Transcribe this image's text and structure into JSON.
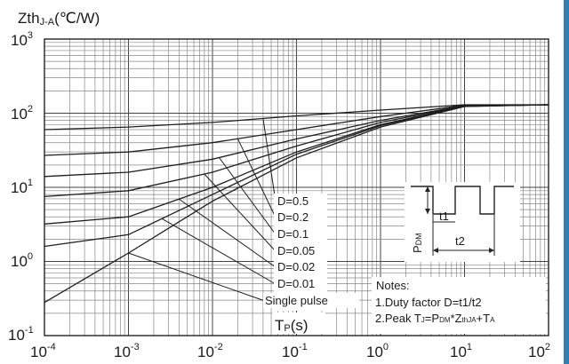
{
  "chart_data": {
    "type": "line",
    "ylabel_main": "Zth",
    "ylabel_sub": "J-A",
    "ylabel_unit": "(℃/W)",
    "xlabel_main": "T",
    "xlabel_sub": "P",
    "xlabel_unit": "(s)",
    "x_scale": "log",
    "y_scale": "log",
    "xlim": [
      0.0001,
      100
    ],
    "ylim": [
      0.1,
      1000
    ],
    "grid": true,
    "x_ticks": [
      {
        "base": "10",
        "exp": "-4"
      },
      {
        "base": "10",
        "exp": "-3"
      },
      {
        "base": "10",
        "exp": "-2"
      },
      {
        "base": "10",
        "exp": "-1"
      },
      {
        "base": "10",
        "exp": "0"
      },
      {
        "base": "10",
        "exp": "1"
      },
      {
        "base": "10",
        "exp": "2"
      }
    ],
    "y_ticks": [
      {
        "base": "10",
        "exp": "-1"
      },
      {
        "base": "10",
        "exp": "0"
      },
      {
        "base": "10",
        "exp": "1"
      },
      {
        "base": "10",
        "exp": "2"
      },
      {
        "base": "10",
        "exp": "3"
      }
    ],
    "series": [
      {
        "name": "D=0.5",
        "points": [
          [
            0.0001,
            60
          ],
          [
            0.001,
            65
          ],
          [
            0.01,
            75
          ],
          [
            0.1,
            92
          ],
          [
            1,
            110
          ],
          [
            10,
            130
          ],
          [
            100,
            130
          ]
        ]
      },
      {
        "name": "D=0.2",
        "points": [
          [
            0.0001,
            27
          ],
          [
            0.001,
            30
          ],
          [
            0.01,
            40
          ],
          [
            0.1,
            60
          ],
          [
            1,
            90
          ],
          [
            10,
            128
          ],
          [
            100,
            130
          ]
        ]
      },
      {
        "name": "D=0.1",
        "points": [
          [
            0.0001,
            14
          ],
          [
            0.001,
            16
          ],
          [
            0.01,
            24
          ],
          [
            0.1,
            45
          ],
          [
            1,
            80
          ],
          [
            10,
            126
          ],
          [
            100,
            130
          ]
        ]
      },
      {
        "name": "D=0.05",
        "points": [
          [
            0.0001,
            7.5
          ],
          [
            0.001,
            9
          ],
          [
            0.01,
            16
          ],
          [
            0.1,
            36
          ],
          [
            1,
            75
          ],
          [
            10,
            125
          ],
          [
            100,
            130
          ]
        ]
      },
      {
        "name": "D=0.02",
        "points": [
          [
            0.0001,
            3.2
          ],
          [
            0.001,
            4
          ],
          [
            0.01,
            10
          ],
          [
            0.1,
            30
          ],
          [
            1,
            70
          ],
          [
            10,
            124
          ],
          [
            100,
            130
          ]
        ]
      },
      {
        "name": "D=0.01",
        "points": [
          [
            0.0001,
            1.6
          ],
          [
            0.001,
            2.3
          ],
          [
            0.01,
            8
          ],
          [
            0.1,
            28
          ],
          [
            1,
            68
          ],
          [
            10,
            124
          ],
          [
            100,
            130
          ]
        ]
      },
      {
        "name": "Single pulse",
        "points": [
          [
            0.0001,
            0.28
          ],
          [
            0.001,
            1.3
          ],
          [
            0.01,
            6.5
          ],
          [
            0.1,
            25
          ],
          [
            1,
            65
          ],
          [
            10,
            123
          ],
          [
            100,
            130
          ]
        ]
      }
    ],
    "legend": [
      "D=0.5",
      "D=0.2",
      "D=0.1",
      "D=0.05",
      "D=0.02",
      "D=0.01",
      "Single pulse"
    ],
    "legend_placement": "center-right, leader lines to curves",
    "inset": {
      "ylabel_main": "P",
      "ylabel_sub": "DM",
      "t1": "t1",
      "t2": "t2"
    },
    "notes": {
      "title": "Notes:",
      "line1": "1.Duty factor D=t1/t2",
      "line2_prefix": "2.Peak T",
      "line2_sub1": "J",
      "line2_mid1": "=P",
      "line2_sub2": "DM",
      "line2_mid2": "*Z",
      "line2_sub3": "thJA",
      "line2_mid3": "+T",
      "line2_sub4": "A"
    }
  }
}
